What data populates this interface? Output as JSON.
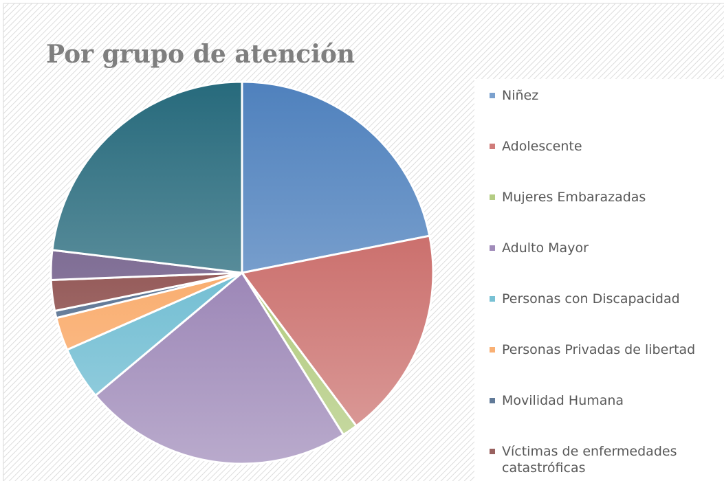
{
  "chart_data": {
    "type": "pie",
    "title": "Por grupo de atención",
    "categories": [
      "Niñez",
      "Adolescente",
      "Mujeres Embarazadas",
      "Adulto Mayor",
      "Personas con Discapacidad",
      "Personas Privadas de libertad",
      "Movilidad Humana",
      "Víctimas de enfermedades catastróficas",
      null,
      null
    ],
    "values": [
      21.9,
      17.9,
      1.3,
      22.8,
      4.5,
      2.8,
      0.6,
      2.6,
      2.5,
      23.1
    ],
    "colors": [
      "#4f81bd",
      "#c0504d",
      "#9bbb59",
      "#8064a2",
      "#4bacc6",
      "#f79646",
      "#2c4d75",
      "#772c2a",
      "#5f497a",
      "#276a7c"
    ],
    "legend": "right"
  }
}
